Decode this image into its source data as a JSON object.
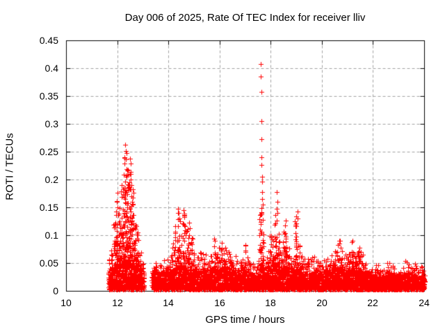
{
  "chart_data": {
    "type": "scatter",
    "title": "Day 006 of 2025, Rate Of TEC Index for receiver lliv",
    "xlabel": "GPS time / hours",
    "ylabel": "ROTI / TECUs",
    "xlim": [
      10,
      24
    ],
    "ylim": [
      0,
      0.45
    ],
    "x_ticks": [
      10,
      12,
      14,
      16,
      18,
      20,
      22,
      24
    ],
    "x_tick_labels": [
      "10",
      "12",
      "14",
      "16",
      "18",
      "20",
      "22",
      "24"
    ],
    "y_ticks": [
      0,
      0.05,
      0.1,
      0.15,
      0.2,
      0.25,
      0.3,
      0.35,
      0.4,
      0.45
    ],
    "y_tick_labels": [
      "0",
      "0.05",
      "0.1",
      "0.15",
      "0.2",
      "0.25",
      "0.3",
      "0.35",
      "0.4",
      "0.45"
    ],
    "grid": true,
    "grid_style": "dashed",
    "grid_color": "#a0a0a0",
    "legend": "none",
    "marker": "plus",
    "marker_color": "#ff0000",
    "marker_size_px": 7,
    "axis_color": "#000000",
    "background": "#ffffff",
    "data_start_hour": 11.68,
    "data_end_hour": 24.0,
    "data_gap_hours": [
      13.05,
      13.35
    ],
    "bin_hours": 0.1,
    "density_bins": [
      [
        11.7,
        0.03,
        0.06
      ],
      [
        11.8,
        0.036,
        0.095
      ],
      [
        11.9,
        0.04,
        0.13
      ],
      [
        12.0,
        0.042,
        0.17
      ],
      [
        12.1,
        0.044,
        0.155
      ],
      [
        12.2,
        0.046,
        0.19
      ],
      [
        12.3,
        0.048,
        0.245
      ],
      [
        12.4,
        0.048,
        0.225
      ],
      [
        12.5,
        0.046,
        0.23
      ],
      [
        12.6,
        0.044,
        0.18
      ],
      [
        12.7,
        0.042,
        0.14
      ],
      [
        12.8,
        0.04,
        0.11
      ],
      [
        12.9,
        0.038,
        0.08
      ],
      [
        13.0,
        0.034,
        0.055
      ],
      [
        13.4,
        0.03,
        0.05
      ],
      [
        13.5,
        0.032,
        0.062
      ],
      [
        13.6,
        0.03,
        0.052
      ],
      [
        13.7,
        0.03,
        0.05
      ],
      [
        13.8,
        0.032,
        0.058
      ],
      [
        13.9,
        0.03,
        0.052
      ],
      [
        14.0,
        0.032,
        0.058
      ],
      [
        14.1,
        0.034,
        0.068
      ],
      [
        14.2,
        0.035,
        0.085
      ],
      [
        14.3,
        0.038,
        0.12
      ],
      [
        14.4,
        0.04,
        0.148
      ],
      [
        14.5,
        0.038,
        0.1
      ],
      [
        14.6,
        0.038,
        0.14
      ],
      [
        14.7,
        0.037,
        0.11
      ],
      [
        14.8,
        0.038,
        0.112
      ],
      [
        14.9,
        0.036,
        0.095
      ],
      [
        15.0,
        0.034,
        0.072
      ],
      [
        15.1,
        0.032,
        0.06
      ],
      [
        15.2,
        0.032,
        0.062
      ],
      [
        15.3,
        0.034,
        0.075
      ],
      [
        15.4,
        0.032,
        0.062
      ],
      [
        15.5,
        0.034,
        0.066
      ],
      [
        15.6,
        0.032,
        0.06
      ],
      [
        15.7,
        0.034,
        0.072
      ],
      [
        15.8,
        0.036,
        0.094
      ],
      [
        15.9,
        0.036,
        0.08
      ],
      [
        16.0,
        0.036,
        0.078
      ],
      [
        16.1,
        0.038,
        0.085
      ],
      [
        16.2,
        0.036,
        0.08
      ],
      [
        16.3,
        0.034,
        0.072
      ],
      [
        16.4,
        0.036,
        0.075
      ],
      [
        16.5,
        0.034,
        0.07
      ],
      [
        16.6,
        0.032,
        0.064
      ],
      [
        16.7,
        0.032,
        0.06
      ],
      [
        16.8,
        0.03,
        0.055
      ],
      [
        16.9,
        0.032,
        0.062
      ],
      [
        17.0,
        0.034,
        0.082
      ],
      [
        17.1,
        0.032,
        0.065
      ],
      [
        17.2,
        0.03,
        0.056
      ],
      [
        17.3,
        0.028,
        0.05
      ],
      [
        17.4,
        0.025,
        0.046
      ],
      [
        17.5,
        0.026,
        0.058
      ],
      [
        17.6,
        0.04,
        0.15
      ],
      [
        17.7,
        0.038,
        0.12
      ],
      [
        17.8,
        0.026,
        0.058
      ],
      [
        17.9,
        0.03,
        0.078
      ],
      [
        18.0,
        0.035,
        0.105
      ],
      [
        18.1,
        0.038,
        0.1
      ],
      [
        18.2,
        0.04,
        0.14
      ],
      [
        18.3,
        0.038,
        0.11
      ],
      [
        18.4,
        0.034,
        0.08
      ],
      [
        18.5,
        0.038,
        0.115
      ],
      [
        18.6,
        0.038,
        0.125
      ],
      [
        18.7,
        0.034,
        0.078
      ],
      [
        18.8,
        0.032,
        0.062
      ],
      [
        18.9,
        0.034,
        0.072
      ],
      [
        19.0,
        0.036,
        0.135
      ],
      [
        19.1,
        0.034,
        0.09
      ],
      [
        19.2,
        0.032,
        0.068
      ],
      [
        19.3,
        0.03,
        0.058
      ],
      [
        19.4,
        0.03,
        0.055
      ],
      [
        19.5,
        0.029,
        0.06
      ],
      [
        19.6,
        0.03,
        0.066
      ],
      [
        19.7,
        0.031,
        0.062
      ],
      [
        19.8,
        0.03,
        0.058
      ],
      [
        19.9,
        0.028,
        0.054
      ],
      [
        20.0,
        0.028,
        0.052
      ],
      [
        20.1,
        0.03,
        0.056
      ],
      [
        20.2,
        0.03,
        0.06
      ],
      [
        20.3,
        0.032,
        0.064
      ],
      [
        20.4,
        0.034,
        0.07
      ],
      [
        20.5,
        0.035,
        0.078
      ],
      [
        20.6,
        0.036,
        0.084
      ],
      [
        20.7,
        0.037,
        0.09
      ],
      [
        20.8,
        0.034,
        0.076
      ],
      [
        20.9,
        0.032,
        0.066
      ],
      [
        21.0,
        0.034,
        0.07
      ],
      [
        21.1,
        0.035,
        0.082
      ],
      [
        21.2,
        0.036,
        0.088
      ],
      [
        21.3,
        0.035,
        0.082
      ],
      [
        21.4,
        0.034,
        0.076
      ],
      [
        21.5,
        0.034,
        0.08
      ],
      [
        21.6,
        0.032,
        0.066
      ],
      [
        21.7,
        0.03,
        0.056
      ],
      [
        21.8,
        0.028,
        0.05
      ],
      [
        21.9,
        0.027,
        0.046
      ],
      [
        22.0,
        0.026,
        0.042
      ],
      [
        22.1,
        0.026,
        0.046
      ],
      [
        22.2,
        0.028,
        0.05
      ],
      [
        22.3,
        0.026,
        0.046
      ],
      [
        22.4,
        0.026,
        0.042
      ],
      [
        22.5,
        0.026,
        0.046
      ],
      [
        22.6,
        0.028,
        0.052
      ],
      [
        22.7,
        0.028,
        0.056
      ],
      [
        22.8,
        0.028,
        0.05
      ],
      [
        22.9,
        0.026,
        0.046
      ],
      [
        23.0,
        0.024,
        0.04
      ],
      [
        23.1,
        0.026,
        0.046
      ],
      [
        23.2,
        0.028,
        0.05
      ],
      [
        23.3,
        0.028,
        0.056
      ],
      [
        23.4,
        0.026,
        0.05
      ],
      [
        23.5,
        0.026,
        0.046
      ],
      [
        23.6,
        0.028,
        0.05
      ],
      [
        23.7,
        0.026,
        0.046
      ],
      [
        23.8,
        0.024,
        0.04
      ],
      [
        23.9,
        0.026,
        0.046
      ],
      [
        23.97,
        0.024,
        0.042
      ]
    ],
    "peaks": [
      [
        12.32,
        0.262
      ],
      [
        12.34,
        0.251
      ],
      [
        12.37,
        0.247
      ],
      [
        12.5,
        0.238
      ],
      [
        12.52,
        0.229
      ],
      [
        12.43,
        0.218
      ],
      [
        12.53,
        0.21
      ],
      [
        12.54,
        0.2
      ],
      [
        12.3,
        0.196
      ],
      [
        12.56,
        0.19
      ],
      [
        12.25,
        0.185
      ],
      [
        12.6,
        0.182
      ],
      [
        12.02,
        0.176
      ],
      [
        14.38,
        0.148
      ],
      [
        14.41,
        0.14
      ],
      [
        14.45,
        0.125
      ],
      [
        14.6,
        0.145
      ],
      [
        14.63,
        0.132
      ],
      [
        14.8,
        0.122
      ],
      [
        14.85,
        0.113
      ],
      [
        15.8,
        0.094
      ],
      [
        16.1,
        0.086
      ],
      [
        17.0,
        0.082
      ],
      [
        17.62,
        0.408
      ],
      [
        17.62,
        0.385
      ],
      [
        17.63,
        0.358
      ],
      [
        17.64,
        0.305
      ],
      [
        17.64,
        0.272
      ],
      [
        17.65,
        0.24
      ],
      [
        17.65,
        0.226
      ],
      [
        17.66,
        0.205
      ],
      [
        17.66,
        0.196
      ],
      [
        17.67,
        0.178
      ],
      [
        17.67,
        0.165
      ],
      [
        17.68,
        0.155
      ],
      [
        17.6,
        0.138
      ],
      [
        17.7,
        0.128
      ],
      [
        18.25,
        0.178
      ],
      [
        18.26,
        0.16
      ],
      [
        18.23,
        0.148
      ],
      [
        18.27,
        0.14
      ],
      [
        18.55,
        0.118
      ],
      [
        18.6,
        0.126
      ],
      [
        19.04,
        0.142
      ],
      [
        19.05,
        0.13
      ],
      [
        20.7,
        0.09
      ],
      [
        21.2,
        0.09
      ]
    ]
  }
}
